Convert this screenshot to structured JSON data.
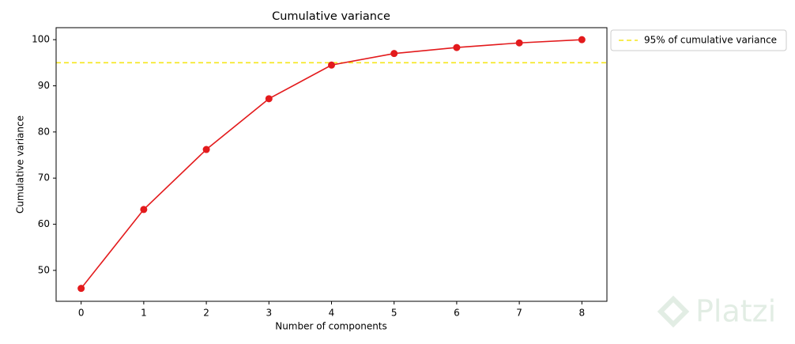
{
  "chart_data": {
    "type": "line",
    "title": "Cumulative variance",
    "x_label": "Number of components",
    "y_label": "Cumulative variance",
    "x": [
      0,
      1,
      2,
      3,
      4,
      5,
      6,
      7,
      8
    ],
    "series": [
      {
        "color": "#e31a1c",
        "values": [
          46.1,
          63.2,
          76.2,
          87.2,
          94.5,
          97.0,
          98.3,
          99.3,
          100.0
        ]
      }
    ],
    "hlines": [
      {
        "name": "95% of cumulative variance",
        "value": 95,
        "color": "#f5e61a"
      }
    ],
    "xlim": [
      -0.4,
      8.4
    ],
    "xticks": [
      0,
      1,
      2,
      3,
      4,
      5,
      6,
      7,
      8
    ],
    "ylim": [
      43.3,
      102.6
    ],
    "yticks": [
      50,
      60,
      70,
      80,
      90,
      100
    ],
    "grid": false,
    "legend": "upper right outside"
  },
  "watermark": "Platzi"
}
